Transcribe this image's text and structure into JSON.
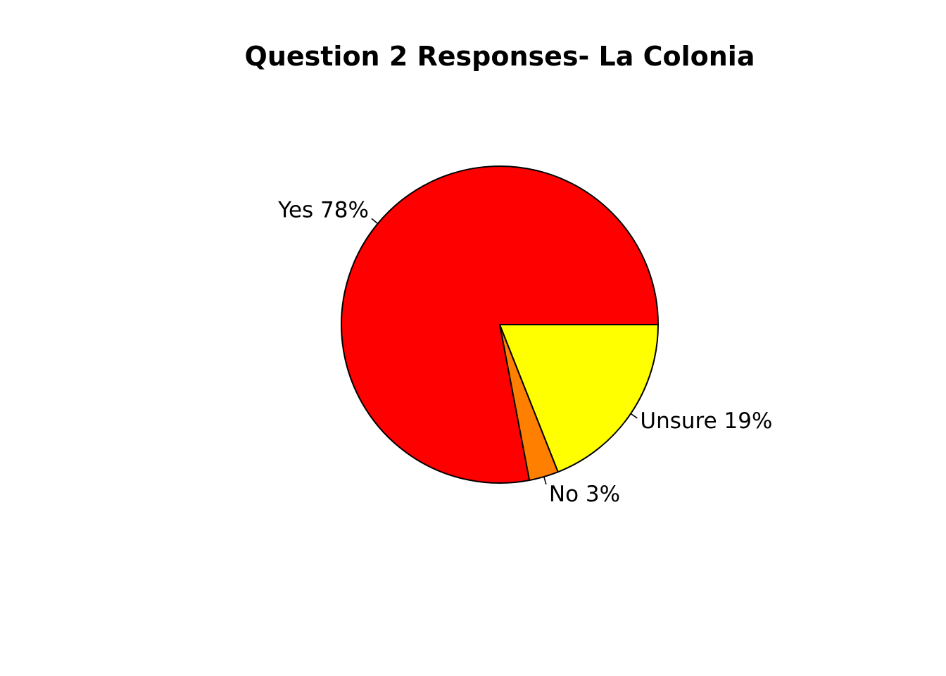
{
  "chart_data": {
    "type": "pie",
    "title": "Question 2 Responses- La Colonia",
    "slices": [
      {
        "category": "Yes",
        "label": "Yes 78%",
        "value": 78,
        "color": "#FF0000"
      },
      {
        "category": "No",
        "label": "No 3%",
        "value": 3,
        "color": "#FF8000"
      },
      {
        "category": "Unsure",
        "label": "Unsure 19%",
        "value": 19,
        "color": "#FFFF00"
      }
    ],
    "start_angle_deg": 0,
    "direction": "counterclockwise",
    "legend": "none"
  }
}
